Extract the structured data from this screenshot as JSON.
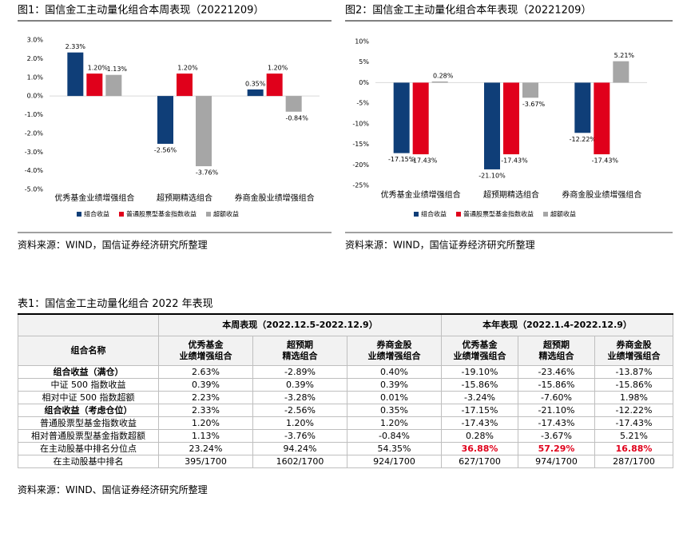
{
  "chart_data": [
    {
      "type": "bar",
      "title": "图1：国信金工主动量化组合本周表现（20221209）",
      "categories": [
        "优秀基金业绩增强组合",
        "超预期精选组合",
        "券商金股业绩增强组合"
      ],
      "series": [
        {
          "name": "组合收益",
          "color": "#0f3e78",
          "values": [
            2.33,
            -2.56,
            0.35
          ],
          "value_labels": [
            "2.33%",
            "-2.56%",
            "0.35%"
          ]
        },
        {
          "name": "普通股票型基金指数收益",
          "color": "#e0001b",
          "values": [
            1.2,
            1.2,
            1.2
          ],
          "value_labels": [
            "1.20%",
            "1.20%",
            "1.20%"
          ]
        },
        {
          "name": "超额收益",
          "color": "#a6a6a6",
          "values": [
            1.13,
            -3.76,
            -0.84
          ],
          "value_labels": [
            "1.13%",
            "-3.76%",
            "-0.84%"
          ]
        }
      ],
      "ylim": [
        -5,
        3
      ],
      "yticks": [
        {
          "value": 3,
          "label": "3.0%"
        },
        {
          "value": 2,
          "label": "2.0%"
        },
        {
          "value": 1,
          "label": "1.0%"
        },
        {
          "value": 0,
          "label": "0.0%"
        },
        {
          "value": -1,
          "label": "-1.0%"
        },
        {
          "value": -2,
          "label": "-2.0%"
        },
        {
          "value": -3,
          "label": "-3.0%"
        },
        {
          "value": -4,
          "label": "-4.0%"
        },
        {
          "value": -5,
          "label": "-5.0%"
        }
      ],
      "source": "资料来源：WIND，国信证券经济研究所整理"
    },
    {
      "type": "bar",
      "title": "图2：国信金工主动量化组合本年表现（20221209）",
      "categories": [
        "优秀基金业绩增强组合",
        "超预期精选组合",
        "券商金股业绩增强组合"
      ],
      "series": [
        {
          "name": "组合收益",
          "color": "#0f3e78",
          "values": [
            -17.15,
            -21.1,
            -12.22
          ],
          "value_labels": [
            "-17.15%",
            "-21.10%",
            "-12.22%"
          ]
        },
        {
          "name": "普通股票型基金指数收益",
          "color": "#e0001b",
          "values": [
            -17.43,
            -17.43,
            -17.43
          ],
          "value_labels": [
            "-17.43%",
            "-17.43%",
            "-17.43%"
          ]
        },
        {
          "name": "超额收益",
          "color": "#a6a6a6",
          "values": [
            0.28,
            -3.67,
            5.21
          ],
          "value_labels": [
            "0.28%",
            "-3.67%",
            "5.21%"
          ]
        }
      ],
      "ylim": [
        -25,
        10
      ],
      "yticks": [
        {
          "value": 10,
          "label": "10%"
        },
        {
          "value": 5,
          "label": "5%"
        },
        {
          "value": 0,
          "label": "0%"
        },
        {
          "value": -5,
          "label": "-5%"
        },
        {
          "value": -10,
          "label": "-10%"
        },
        {
          "value": -15,
          "label": "-15%"
        },
        {
          "value": -20,
          "label": "-20%"
        },
        {
          "value": -25,
          "label": "-25%"
        }
      ],
      "source": "资料来源：WIND，国信证券经济研究所整理"
    }
  ],
  "table": {
    "title": "表1：国信金工主动量化组合 2022 年表现",
    "header_groups": [
      "本周表现（2022.12.5-2022.12.9）",
      "本年表现（2022.1.4-2022.12.9）"
    ],
    "columns": [
      "组合名称",
      "优秀基金\n业绩增强组合",
      "超预期\n精选组合",
      "券商金股\n业绩增强组合",
      "优秀基金\n业绩增强组合",
      "超预期\n精选组合",
      "券商金股\n业绩增强组合"
    ],
    "rows": [
      [
        "组合收益（满仓）",
        "2.63%",
        "-2.89%",
        "0.40%",
        "-19.10%",
        "-23.46%",
        "-13.87%"
      ],
      [
        "中证 500 指数收益",
        "0.39%",
        "0.39%",
        "0.39%",
        "-15.86%",
        "-15.86%",
        "-15.86%"
      ],
      [
        "相对中证 500 指数超额",
        "2.23%",
        "-3.28%",
        "0.01%",
        "-3.24%",
        "-7.60%",
        "1.98%"
      ],
      [
        "组合收益（考虑仓位）",
        "2.33%",
        "-2.56%",
        "0.35%",
        "-17.15%",
        "-21.10%",
        "-12.22%"
      ],
      [
        "普通股票型基金指数收益",
        "1.20%",
        "1.20%",
        "1.20%",
        "-17.43%",
        "-17.43%",
        "-17.43%"
      ],
      [
        "相对普通股票型基金指数超额",
        "1.13%",
        "-3.76%",
        "-0.84%",
        "0.28%",
        "-3.67%",
        "5.21%"
      ],
      [
        "在主动股基中排名分位点",
        "23.24%",
        "94.24%",
        "54.35%",
        "36.88%",
        "57.29%",
        "16.88%"
      ],
      [
        "在主动股基中排名",
        "395/1700",
        "1602/1700",
        "924/1700",
        "627/1700",
        "974/1700",
        "287/1700"
      ]
    ],
    "source": "资料来源：WIND、国信证券经济研究所整理"
  }
}
